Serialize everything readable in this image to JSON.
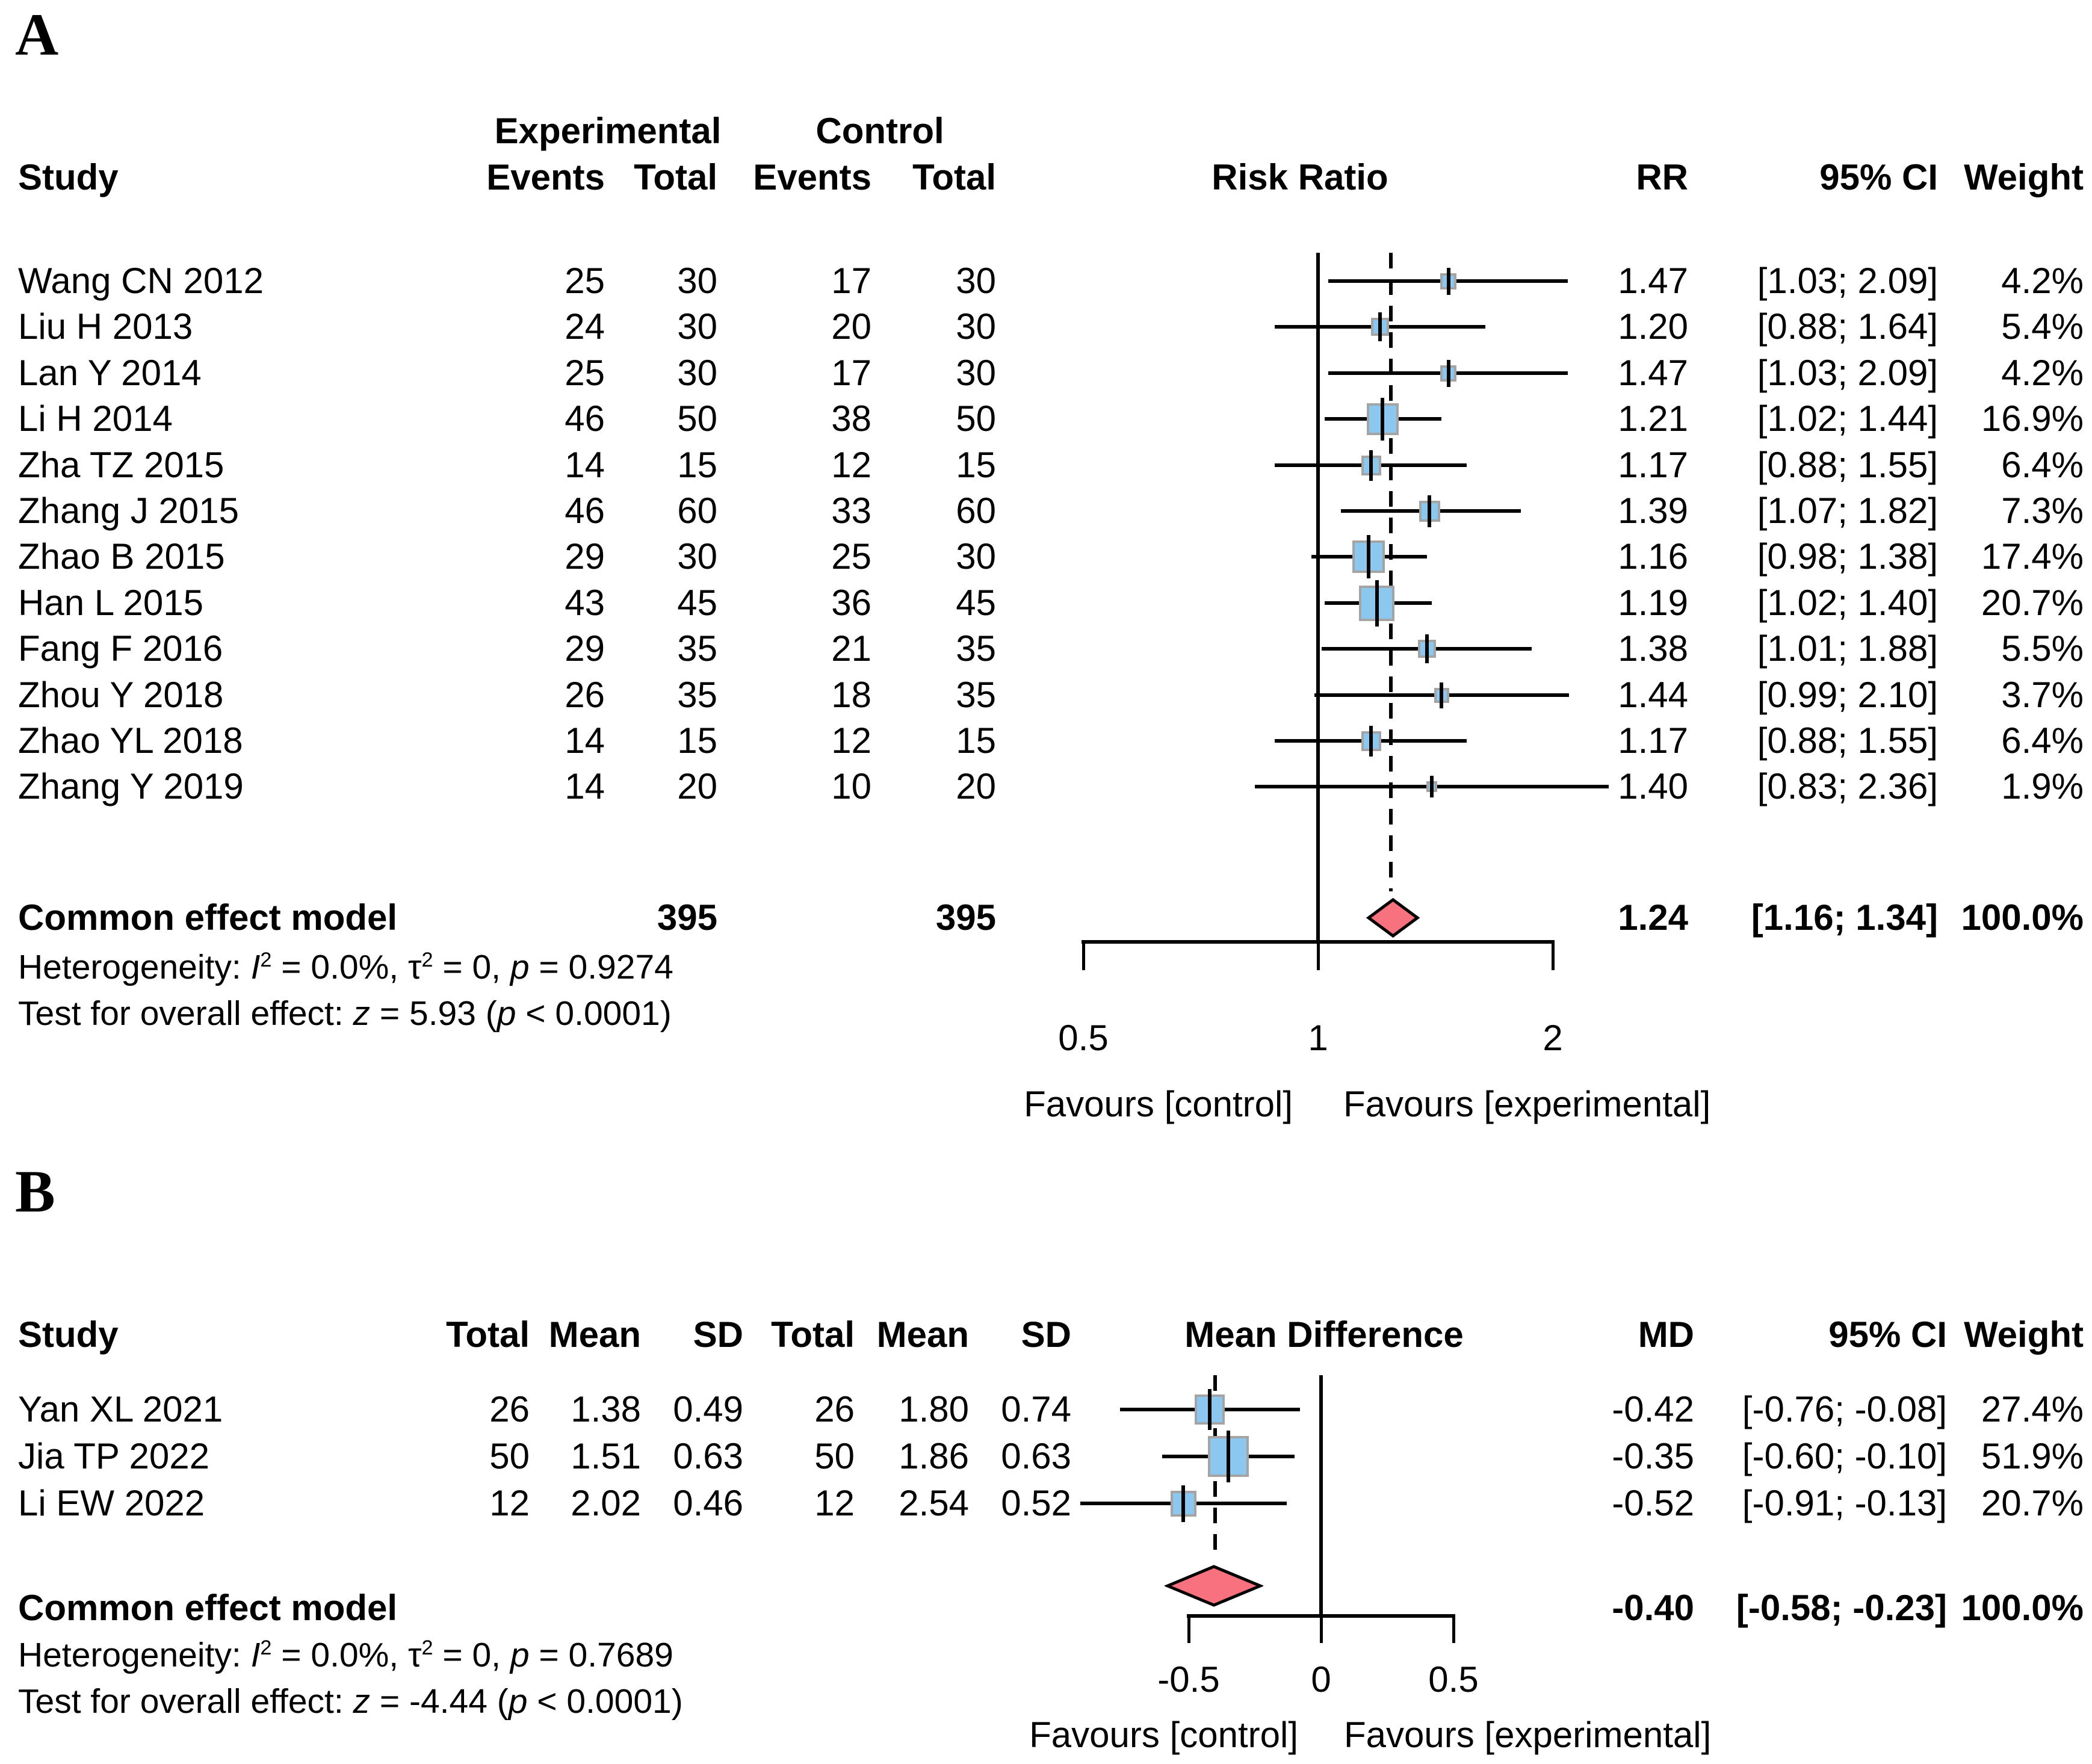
{
  "colors": {
    "square_fill": "#8BC7EE",
    "square_border": "#A4A4A4",
    "diamond_fill": "#F8717F",
    "diamond_border": "#000000",
    "line": "#000000",
    "background": "#FFFFFF"
  },
  "chart_data": [
    {
      "type": "forest",
      "panel_label": "A",
      "effect_measure": "Risk Ratio",
      "scale": "log",
      "column_group_headers": [
        "Experimental",
        "Control"
      ],
      "table_columns": [
        "Study",
        "Events",
        "Total",
        "Events",
        "Total"
      ],
      "stat_columns": [
        "RR",
        "95% CI",
        "Weight"
      ],
      "studies": [
        {
          "name": "Wang CN 2012",
          "cells": [
            "25",
            "30",
            "17",
            "30"
          ],
          "effect": 1.47,
          "lo": 1.03,
          "hi": 2.09,
          "effect_text": "1.47",
          "ci_text": "[1.03; 2.09]",
          "weight": 4.2,
          "weight_text": "4.2%"
        },
        {
          "name": "Liu H 2013",
          "cells": [
            "24",
            "30",
            "20",
            "30"
          ],
          "effect": 1.2,
          "lo": 0.88,
          "hi": 1.64,
          "effect_text": "1.20",
          "ci_text": "[0.88; 1.64]",
          "weight": 5.4,
          "weight_text": "5.4%"
        },
        {
          "name": "Lan Y 2014",
          "cells": [
            "25",
            "30",
            "17",
            "30"
          ],
          "effect": 1.47,
          "lo": 1.03,
          "hi": 2.09,
          "effect_text": "1.47",
          "ci_text": "[1.03; 2.09]",
          "weight": 4.2,
          "weight_text": "4.2%"
        },
        {
          "name": "Li H 2014",
          "cells": [
            "46",
            "50",
            "38",
            "50"
          ],
          "effect": 1.21,
          "lo": 1.02,
          "hi": 1.44,
          "effect_text": "1.21",
          "ci_text": "[1.02; 1.44]",
          "weight": 16.9,
          "weight_text": "16.9%"
        },
        {
          "name": "Zha TZ 2015",
          "cells": [
            "14",
            "15",
            "12",
            "15"
          ],
          "effect": 1.17,
          "lo": 0.88,
          "hi": 1.55,
          "effect_text": "1.17",
          "ci_text": "[0.88; 1.55]",
          "weight": 6.4,
          "weight_text": "6.4%"
        },
        {
          "name": "Zhang J 2015",
          "cells": [
            "46",
            "60",
            "33",
            "60"
          ],
          "effect": 1.39,
          "lo": 1.07,
          "hi": 1.82,
          "effect_text": "1.39",
          "ci_text": "[1.07; 1.82]",
          "weight": 7.3,
          "weight_text": "7.3%"
        },
        {
          "name": "Zhao B 2015",
          "cells": [
            "29",
            "30",
            "25",
            "30"
          ],
          "effect": 1.16,
          "lo": 0.98,
          "hi": 1.38,
          "effect_text": "1.16",
          "ci_text": "[0.98; 1.38]",
          "weight": 17.4,
          "weight_text": "17.4%"
        },
        {
          "name": "Han L 2015",
          "cells": [
            "43",
            "45",
            "36",
            "45"
          ],
          "effect": 1.19,
          "lo": 1.02,
          "hi": 1.4,
          "effect_text": "1.19",
          "ci_text": "[1.02; 1.40]",
          "weight": 20.7,
          "weight_text": "20.7%"
        },
        {
          "name": "Fang F 2016",
          "cells": [
            "29",
            "35",
            "21",
            "35"
          ],
          "effect": 1.38,
          "lo": 1.01,
          "hi": 1.88,
          "effect_text": "1.38",
          "ci_text": "[1.01; 1.88]",
          "weight": 5.5,
          "weight_text": "5.5%"
        },
        {
          "name": "Zhou Y 2018",
          "cells": [
            "26",
            "35",
            "18",
            "35"
          ],
          "effect": 1.44,
          "lo": 0.99,
          "hi": 2.1,
          "effect_text": "1.44",
          "ci_text": "[0.99; 2.10]",
          "weight": 3.7,
          "weight_text": "3.7%"
        },
        {
          "name": "Zhao YL 2018",
          "cells": [
            "14",
            "15",
            "12",
            "15"
          ],
          "effect": 1.17,
          "lo": 0.88,
          "hi": 1.55,
          "effect_text": "1.17",
          "ci_text": "[0.88; 1.55]",
          "weight": 6.4,
          "weight_text": "6.4%"
        },
        {
          "name": "Zhang Y 2019",
          "cells": [
            "14",
            "20",
            "10",
            "20"
          ],
          "effect": 1.4,
          "lo": 0.83,
          "hi": 2.36,
          "effect_text": "1.40",
          "ci_text": "[0.83; 2.36]",
          "weight": 1.9,
          "weight_text": "1.9%"
        }
      ],
      "summary": {
        "name": "Common effect model",
        "cells": [
          "",
          "395",
          "",
          "395"
        ],
        "effect": 1.24,
        "lo": 1.16,
        "hi": 1.34,
        "effect_text": "1.24",
        "ci_text": "[1.16; 1.34]",
        "weight_text": "100.0%"
      },
      "heterogeneity_text": "Heterogeneity: *I*^2^ = 0.0%, τ^2^ = 0, *p* = 0.9274",
      "overall_effect_text": "Test for overall effect: *z* = 5.93 (*p* < 0.0001)",
      "axis": {
        "scale": "log",
        "xlim": [
          0.5,
          2.4
        ],
        "ticks": [
          0.5,
          1,
          2
        ],
        "tick_labels": [
          "0.5",
          "1",
          "2"
        ],
        "ref_line": 1,
        "pooled_line": 1.24,
        "favours_left": "Favours [control]",
        "favours_right": "Favours [experimental]"
      }
    },
    {
      "type": "forest",
      "panel_label": "B",
      "effect_measure": "Mean Difference",
      "scale": "linear",
      "column_group_headers": [],
      "table_columns": [
        "Study",
        "Total",
        "Mean",
        "SD",
        "Total",
        "Mean",
        "SD"
      ],
      "stat_columns": [
        "MD",
        "95% CI",
        "Weight"
      ],
      "studies": [
        {
          "name": "Yan XL 2021",
          "cells": [
            "26",
            "1.38",
            "0.49",
            "26",
            "1.80",
            "0.74"
          ],
          "effect": -0.42,
          "lo": -0.76,
          "hi": -0.08,
          "effect_text": "-0.42",
          "ci_text": "[-0.76; -0.08]",
          "weight": 27.4,
          "weight_text": "27.4%"
        },
        {
          "name": "Jia TP 2022",
          "cells": [
            "50",
            "1.51",
            "0.63",
            "50",
            "1.86",
            "0.63"
          ],
          "effect": -0.35,
          "lo": -0.6,
          "hi": -0.1,
          "effect_text": "-0.35",
          "ci_text": "[-0.60; -0.10]",
          "weight": 51.9,
          "weight_text": "51.9%"
        },
        {
          "name": "Li EW 2022",
          "cells": [
            "12",
            "2.02",
            "0.46",
            "12",
            "2.54",
            "0.52"
          ],
          "effect": -0.52,
          "lo": -0.91,
          "hi": -0.13,
          "effect_text": "-0.52",
          "ci_text": "[-0.91; -0.13]",
          "weight": 20.7,
          "weight_text": "20.7%"
        }
      ],
      "summary": {
        "name": "Common effect model",
        "cells": [
          "",
          "",
          "",
          "",
          "",
          ""
        ],
        "effect": -0.4,
        "lo": -0.58,
        "hi": -0.23,
        "effect_text": "-0.40",
        "ci_text": "[-0.58; -0.23]",
        "weight_text": "100.0%"
      },
      "heterogeneity_text": "Heterogeneity: *I*^2^ = 0.0%, τ^2^ = 0, *p* = 0.7689",
      "overall_effect_text": "Test for overall effect: *z* = -4.44 (*p* < 0.0001)",
      "axis": {
        "scale": "linear",
        "xlim": [
          -1,
          0.6
        ],
        "ticks": [
          -0.5,
          0,
          0.5
        ],
        "tick_labels": [
          "-0.5",
          "0",
          "0.5"
        ],
        "ref_line": 0,
        "pooled_line": -0.4,
        "favours_left": "Favours [control]",
        "favours_right": "Favours [experimental]"
      }
    }
  ]
}
